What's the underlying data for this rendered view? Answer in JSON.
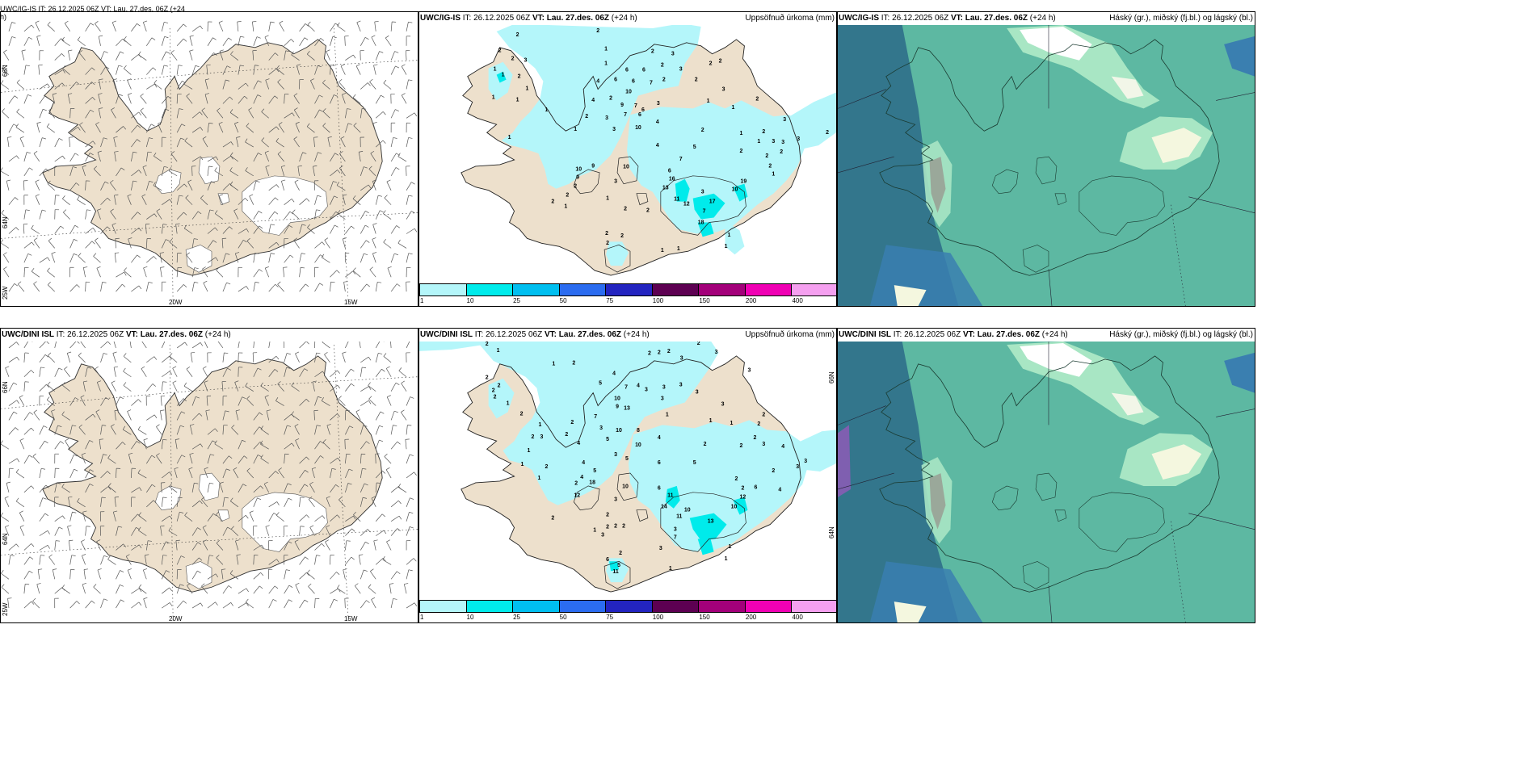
{
  "rows": [
    {
      "title_model": "UWC/IG-IS",
      "title_it": "IT: 26.12.2025 06Z",
      "title_vt": "VT: Lau. 27.des. 06Z",
      "title_lead": "(+24 h)",
      "wind_title_wrapped_line1": "UWC/IG-IS IT: 26.12.2025 06Z VT: Lau. 27.des. 06Z (+24",
      "wind_title_wrapped_line2": "h)",
      "precip_numbers": [
        {
          "v": "2",
          "x": 640,
          "y": 42
        },
        {
          "v": "2",
          "x": 740,
          "y": 37
        },
        {
          "v": "2",
          "x": 618,
          "y": 62
        },
        {
          "v": "2",
          "x": 634,
          "y": 72
        },
        {
          "v": "3",
          "x": 650,
          "y": 74
        },
        {
          "v": "1",
          "x": 750,
          "y": 60
        },
        {
          "v": "2",
          "x": 808,
          "y": 63
        },
        {
          "v": "3",
          "x": 833,
          "y": 66
        },
        {
          "v": "1",
          "x": 612,
          "y": 85
        },
        {
          "v": "1",
          "x": 622,
          "y": 92
        },
        {
          "v": "2",
          "x": 642,
          "y": 94
        },
        {
          "v": "1",
          "x": 750,
          "y": 78
        },
        {
          "v": "6",
          "x": 776,
          "y": 86
        },
        {
          "v": "6",
          "x": 797,
          "y": 86
        },
        {
          "v": "2",
          "x": 820,
          "y": 80
        },
        {
          "v": "2",
          "x": 880,
          "y": 78
        },
        {
          "v": "2",
          "x": 892,
          "y": 75
        },
        {
          "v": "1",
          "x": 652,
          "y": 109
        },
        {
          "v": "4",
          "x": 740,
          "y": 100
        },
        {
          "v": "6",
          "x": 762,
          "y": 98
        },
        {
          "v": "6",
          "x": 784,
          "y": 100
        },
        {
          "v": "7",
          "x": 806,
          "y": 102
        },
        {
          "v": "2",
          "x": 822,
          "y": 98
        },
        {
          "v": "3",
          "x": 843,
          "y": 85
        },
        {
          "v": "2",
          "x": 862,
          "y": 98
        },
        {
          "v": "1",
          "x": 610,
          "y": 120
        },
        {
          "v": "10",
          "x": 778,
          "y": 113
        },
        {
          "v": "3",
          "x": 896,
          "y": 110
        },
        {
          "v": "1",
          "x": 640,
          "y": 123
        },
        {
          "v": "4",
          "x": 734,
          "y": 124
        },
        {
          "v": "2",
          "x": 756,
          "y": 121
        },
        {
          "v": "9",
          "x": 770,
          "y": 130
        },
        {
          "v": "7",
          "x": 787,
          "y": 131
        },
        {
          "v": "6",
          "x": 796,
          "y": 136
        },
        {
          "v": "3",
          "x": 815,
          "y": 128
        },
        {
          "v": "1",
          "x": 877,
          "y": 125
        },
        {
          "v": "2",
          "x": 938,
          "y": 122
        },
        {
          "v": "1",
          "x": 676,
          "y": 136
        },
        {
          "v": "6",
          "x": 792,
          "y": 142
        },
        {
          "v": "1",
          "x": 908,
          "y": 133
        },
        {
          "v": "2",
          "x": 726,
          "y": 144
        },
        {
          "v": "3",
          "x": 751,
          "y": 146
        },
        {
          "v": "7",
          "x": 774,
          "y": 142
        },
        {
          "v": "4",
          "x": 814,
          "y": 151
        },
        {
          "v": "3",
          "x": 972,
          "y": 148
        },
        {
          "v": "1",
          "x": 712,
          "y": 160
        },
        {
          "v": "3",
          "x": 760,
          "y": 160
        },
        {
          "v": "10",
          "x": 790,
          "y": 158
        },
        {
          "v": "2",
          "x": 870,
          "y": 161
        },
        {
          "v": "1",
          "x": 918,
          "y": 165
        },
        {
          "v": "2",
          "x": 946,
          "y": 163
        },
        {
          "v": "2",
          "x": 1025,
          "y": 164
        },
        {
          "v": "1",
          "x": 630,
          "y": 170
        },
        {
          "v": "4",
          "x": 814,
          "y": 180
        },
        {
          "v": "5",
          "x": 860,
          "y": 182
        },
        {
          "v": "3",
          "x": 958,
          "y": 175
        },
        {
          "v": "3",
          "x": 970,
          "y": 176
        },
        {
          "v": "3",
          "x": 989,
          "y": 172
        },
        {
          "v": "1",
          "x": 940,
          "y": 175
        },
        {
          "v": "2",
          "x": 918,
          "y": 187
        },
        {
          "v": "7",
          "x": 843,
          "y": 197
        },
        {
          "v": "2",
          "x": 950,
          "y": 193
        },
        {
          "v": "2",
          "x": 968,
          "y": 188
        },
        {
          "v": "10",
          "x": 716,
          "y": 210
        },
        {
          "v": "9",
          "x": 734,
          "y": 206
        },
        {
          "v": "10",
          "x": 775,
          "y": 207
        },
        {
          "v": "2",
          "x": 954,
          "y": 206
        },
        {
          "v": "6",
          "x": 829,
          "y": 212
        },
        {
          "v": "9",
          "x": 715,
          "y": 220
        },
        {
          "v": "3",
          "x": 762,
          "y": 225
        },
        {
          "v": "16",
          "x": 832,
          "y": 222
        },
        {
          "v": "19",
          "x": 921,
          "y": 225
        },
        {
          "v": "1",
          "x": 958,
          "y": 216
        },
        {
          "v": "2",
          "x": 712,
          "y": 231
        },
        {
          "v": "13",
          "x": 824,
          "y": 233
        },
        {
          "v": "10",
          "x": 910,
          "y": 235
        },
        {
          "v": "2",
          "x": 702,
          "y": 242
        },
        {
          "v": "1",
          "x": 752,
          "y": 246
        },
        {
          "v": "11",
          "x": 838,
          "y": 247
        },
        {
          "v": "3",
          "x": 870,
          "y": 238
        },
        {
          "v": "2",
          "x": 684,
          "y": 250
        },
        {
          "v": "12",
          "x": 850,
          "y": 253
        },
        {
          "v": "17",
          "x": 882,
          "y": 250
        },
        {
          "v": "7",
          "x": 872,
          "y": 262
        },
        {
          "v": "1",
          "x": 700,
          "y": 256
        },
        {
          "v": "2",
          "x": 774,
          "y": 259
        },
        {
          "v": "2",
          "x": 802,
          "y": 261
        },
        {
          "v": "18",
          "x": 868,
          "y": 276
        },
        {
          "v": "2",
          "x": 751,
          "y": 290
        },
        {
          "v": "2",
          "x": 770,
          "y": 293
        },
        {
          "v": "1",
          "x": 903,
          "y": 292
        },
        {
          "v": "2",
          "x": 752,
          "y": 302
        },
        {
          "v": "1",
          "x": 899,
          "y": 306
        },
        {
          "v": "1",
          "x": 820,
          "y": 311
        },
        {
          "v": "1",
          "x": 840,
          "y": 309
        }
      ]
    },
    {
      "title_model": "UWC/DINI ISL",
      "title_it": "IT: 26.12.2025 06Z",
      "title_vt": "VT: Lau. 27.des. 06Z",
      "title_lead": "(+24 h)",
      "precip_numbers": [
        {
          "v": "2",
          "x": 602,
          "y": 425
        },
        {
          "v": "2",
          "x": 865,
          "y": 424
        },
        {
          "v": "1",
          "x": 616,
          "y": 433
        },
        {
          "v": "2",
          "x": 804,
          "y": 437
        },
        {
          "v": "2",
          "x": 816,
          "y": 436
        },
        {
          "v": "2",
          "x": 828,
          "y": 434
        },
        {
          "v": "3",
          "x": 844,
          "y": 443
        },
        {
          "v": "3",
          "x": 887,
          "y": 435
        },
        {
          "v": "2",
          "x": 710,
          "y": 449
        },
        {
          "v": "1",
          "x": 685,
          "y": 450
        },
        {
          "v": "3",
          "x": 928,
          "y": 458
        },
        {
          "v": "4",
          "x": 760,
          "y": 462
        },
        {
          "v": "2",
          "x": 602,
          "y": 467
        },
        {
          "v": "2",
          "x": 610,
          "y": 483
        },
        {
          "v": "2",
          "x": 617,
          "y": 477
        },
        {
          "v": "2",
          "x": 612,
          "y": 491
        },
        {
          "v": "1",
          "x": 628,
          "y": 499
        },
        {
          "v": "7",
          "x": 775,
          "y": 479
        },
        {
          "v": "4",
          "x": 790,
          "y": 477
        },
        {
          "v": "3",
          "x": 800,
          "y": 482
        },
        {
          "v": "5",
          "x": 743,
          "y": 474
        },
        {
          "v": "3",
          "x": 822,
          "y": 479
        },
        {
          "v": "3",
          "x": 843,
          "y": 476
        },
        {
          "v": "3",
          "x": 863,
          "y": 485
        },
        {
          "v": "10",
          "x": 764,
          "y": 493
        },
        {
          "v": "9",
          "x": 764,
          "y": 503
        },
        {
          "v": "13",
          "x": 776,
          "y": 505
        },
        {
          "v": "3",
          "x": 820,
          "y": 493
        },
        {
          "v": "2",
          "x": 645,
          "y": 512
        },
        {
          "v": "1",
          "x": 826,
          "y": 513
        },
        {
          "v": "3",
          "x": 895,
          "y": 500
        },
        {
          "v": "2",
          "x": 708,
          "y": 523
        },
        {
          "v": "7",
          "x": 737,
          "y": 516
        },
        {
          "v": "10",
          "x": 766,
          "y": 533
        },
        {
          "v": "8",
          "x": 790,
          "y": 533
        },
        {
          "v": "1",
          "x": 880,
          "y": 521
        },
        {
          "v": "2",
          "x": 946,
          "y": 513
        },
        {
          "v": "1",
          "x": 668,
          "y": 526
        },
        {
          "v": "2",
          "x": 701,
          "y": 538
        },
        {
          "v": "3",
          "x": 744,
          "y": 530
        },
        {
          "v": "4",
          "x": 816,
          "y": 542
        },
        {
          "v": "3",
          "x": 670,
          "y": 541
        },
        {
          "v": "2",
          "x": 659,
          "y": 541
        },
        {
          "v": "4",
          "x": 716,
          "y": 549
        },
        {
          "v": "5",
          "x": 752,
          "y": 544
        },
        {
          "v": "10",
          "x": 790,
          "y": 551
        },
        {
          "v": "1",
          "x": 906,
          "y": 524
        },
        {
          "v": "2",
          "x": 940,
          "y": 525
        },
        {
          "v": "2",
          "x": 935,
          "y": 542
        },
        {
          "v": "3",
          "x": 946,
          "y": 550
        },
        {
          "v": "1",
          "x": 654,
          "y": 558
        },
        {
          "v": "3",
          "x": 762,
          "y": 563
        },
        {
          "v": "5",
          "x": 776,
          "y": 568
        },
        {
          "v": "6",
          "x": 816,
          "y": 573
        },
        {
          "v": "5",
          "x": 860,
          "y": 573
        },
        {
          "v": "2",
          "x": 873,
          "y": 550
        },
        {
          "v": "2",
          "x": 918,
          "y": 552
        },
        {
          "v": "4",
          "x": 970,
          "y": 553
        },
        {
          "v": "4",
          "x": 722,
          "y": 573
        },
        {
          "v": "1",
          "x": 646,
          "y": 575
        },
        {
          "v": "2",
          "x": 676,
          "y": 578
        },
        {
          "v": "2",
          "x": 958,
          "y": 583
        },
        {
          "v": "3",
          "x": 998,
          "y": 571
        },
        {
          "v": "3",
          "x": 988,
          "y": 578
        },
        {
          "v": "1",
          "x": 667,
          "y": 592
        },
        {
          "v": "5",
          "x": 736,
          "y": 583
        },
        {
          "v": "4",
          "x": 720,
          "y": 591
        },
        {
          "v": "2",
          "x": 713,
          "y": 599
        },
        {
          "v": "18",
          "x": 733,
          "y": 598
        },
        {
          "v": "10",
          "x": 774,
          "y": 603
        },
        {
          "v": "12",
          "x": 714,
          "y": 614
        },
        {
          "v": "3",
          "x": 762,
          "y": 619
        },
        {
          "v": "2",
          "x": 912,
          "y": 593
        },
        {
          "v": "2",
          "x": 920,
          "y": 605
        },
        {
          "v": "6",
          "x": 936,
          "y": 604
        },
        {
          "v": "6",
          "x": 816,
          "y": 605
        },
        {
          "v": "11",
          "x": 830,
          "y": 614
        },
        {
          "v": "4",
          "x": 966,
          "y": 607
        },
        {
          "v": "14",
          "x": 822,
          "y": 628
        },
        {
          "v": "10",
          "x": 851,
          "y": 632
        },
        {
          "v": "11",
          "x": 841,
          "y": 640
        },
        {
          "v": "12",
          "x": 920,
          "y": 616
        },
        {
          "v": "10",
          "x": 909,
          "y": 628
        },
        {
          "v": "2",
          "x": 752,
          "y": 638
        },
        {
          "v": "13",
          "x": 880,
          "y": 646
        },
        {
          "v": "1",
          "x": 736,
          "y": 657
        },
        {
          "v": "2",
          "x": 752,
          "y": 653
        },
        {
          "v": "2",
          "x": 762,
          "y": 652
        },
        {
          "v": "2",
          "x": 772,
          "y": 652
        },
        {
          "v": "3",
          "x": 836,
          "y": 656
        },
        {
          "v": "2",
          "x": 684,
          "y": 642
        },
        {
          "v": "7",
          "x": 836,
          "y": 666
        },
        {
          "v": "3",
          "x": 746,
          "y": 663
        },
        {
          "v": "3",
          "x": 818,
          "y": 680
        },
        {
          "v": "1",
          "x": 904,
          "y": 678
        },
        {
          "v": "2",
          "x": 768,
          "y": 686
        },
        {
          "v": "1",
          "x": 899,
          "y": 693
        },
        {
          "v": "6",
          "x": 752,
          "y": 694
        },
        {
          "v": "5",
          "x": 766,
          "y": 701
        },
        {
          "v": "11",
          "x": 762,
          "y": 709
        },
        {
          "v": "1",
          "x": 830,
          "y": 705
        }
      ]
    }
  ],
  "precip_label": "Uppsöfnuð úrkoma (mm)",
  "cloud_label": "Háský (gr.), miðský (fj.bl.) og lágský (bl.)",
  "colorbar": {
    "ticks": [
      "1",
      "10",
      "25",
      "50",
      "75",
      "100",
      "150",
      "200",
      "400"
    ],
    "colors": [
      "#b4f6fa",
      "#00ebeb",
      "#00bff0",
      "#2b6cf0",
      "#2324c0",
      "#5d0052",
      "#a3007a",
      "#f000b4",
      "#f5a0f0"
    ]
  },
  "map_axes": {
    "lon_left": "25W",
    "lon_mid": "20W",
    "lon_right": "15W",
    "lat_66": "66N",
    "lat_64": "64N",
    "lat_66_right": "66N",
    "lat_64_right": "64N"
  },
  "colors": {
    "land": "#ede0cc",
    "glacier": "#ffffff",
    "precip_light": "#b4f6fa",
    "precip_mid": "#00ebeb",
    "cloud_bg": "#5db8a2",
    "cloud_dark": "#2f6f8a",
    "cloud_high": "#ffffff",
    "cloud_mid": "#a8e6c4"
  }
}
